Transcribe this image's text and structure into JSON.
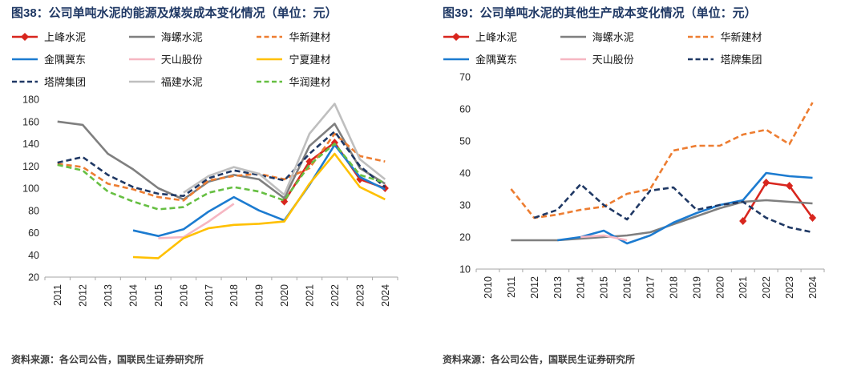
{
  "theme": {
    "title_color": "#1F3864",
    "axis_color": "#A6A6A6",
    "tick_color": "#262626",
    "source_color": "#404040"
  },
  "panels": [
    {
      "title": "图38：公司单吨水泥的能源及煤炭成本变化情况（单位：元）",
      "source": "资料来源：各公司公告，国联民生证券研究所",
      "chart_data": {
        "type": "line",
        "title": "公司单吨水泥的能源及煤炭成本变化情况",
        "unit": "元",
        "x": [
          "2011",
          "2012",
          "2013",
          "2014",
          "2015",
          "2016",
          "2017",
          "2018",
          "2019",
          "2020",
          "2021",
          "2022",
          "2023",
          "2024"
        ],
        "ylim": [
          20,
          180
        ],
        "yticks": [
          20,
          40,
          60,
          80,
          100,
          120,
          140,
          160,
          180
        ],
        "grid": false,
        "legend_position": "top",
        "series": [
          {
            "name": "上峰水泥",
            "color": "#D8261E",
            "dash": "solid",
            "marker": "diamond",
            "values": [
              null,
              null,
              null,
              null,
              null,
              null,
              null,
              null,
              null,
              88,
              124,
              141,
              108,
              100
            ]
          },
          {
            "name": "海螺水泥",
            "color": "#7F7F7F",
            "dash": "solid",
            "marker": "none",
            "values": [
              160,
              157,
              131,
              117,
              100,
              90,
              106,
              112,
              108,
              91,
              138,
              158,
              118,
              104
            ]
          },
          {
            "name": "华新建材",
            "color": "#ED7D31",
            "dash": "dashed",
            "marker": "none",
            "values": [
              122,
              119,
              104,
              99,
              92,
              89,
              107,
              111,
              113,
              108,
              118,
              149,
              129,
              124
            ]
          },
          {
            "name": "金隅冀东",
            "color": "#1C7BD0",
            "dash": "solid",
            "marker": "none",
            "values": [
              null,
              null,
              null,
              62,
              57,
              63,
              79,
              92,
              80,
              71,
              103,
              139,
              110,
              99
            ]
          },
          {
            "name": "天山股份",
            "color": "#F6B6C2",
            "dash": "solid",
            "marker": "none",
            "values": [
              null,
              null,
              null,
              null,
              55,
              56,
              70,
              86,
              null,
              null,
              null,
              null,
              null,
              null
            ]
          },
          {
            "name": "宁夏建材",
            "color": "#FFC000",
            "dash": "solid",
            "marker": "none",
            "values": [
              null,
              null,
              null,
              38,
              37,
              55,
              64,
              67,
              68,
              70,
              104,
              131,
              101,
              90
            ]
          },
          {
            "name": "塔牌集团",
            "color": "#1F3864",
            "dash": "dashed",
            "marker": "none",
            "values": [
              123,
              128,
              112,
              101,
              95,
              93,
              109,
              116,
              112,
              107,
              131,
              151,
              120,
              101
            ]
          },
          {
            "name": "福建水泥",
            "color": "#BFBFBF",
            "dash": "solid",
            "marker": "none",
            "values": [
              null,
              null,
              null,
              null,
              null,
              96,
              111,
              119,
              113,
              94,
              149,
              176,
              126,
              108
            ]
          },
          {
            "name": "华润建材",
            "color": "#66BF42",
            "dash": "dashed",
            "marker": "none",
            "values": [
              121,
              116,
              97,
              88,
              81,
              83,
              96,
              101,
              97,
              89,
              121,
              140,
              112,
              105
            ]
          }
        ]
      }
    },
    {
      "title": "图39：公司单吨水泥的其他生产成本变化情况（单位：元）",
      "source": "资料来源：各公司公告，国联民生证券研究所",
      "chart_data": {
        "type": "line",
        "title": "公司单吨水泥的其他生产成本变化情况",
        "unit": "元",
        "x": [
          "2010",
          "2011",
          "2012",
          "2013",
          "2014",
          "2015",
          "2016",
          "2017",
          "2018",
          "2019",
          "2020",
          "2021",
          "2022",
          "2023",
          "2024"
        ],
        "ylim": [
          10,
          70
        ],
        "yticks": [
          10,
          20,
          30,
          40,
          50,
          60,
          70
        ],
        "grid": false,
        "legend_position": "top",
        "series": [
          {
            "name": "上峰水泥",
            "color": "#D8261E",
            "dash": "solid",
            "marker": "diamond",
            "values": [
              null,
              null,
              null,
              null,
              null,
              null,
              null,
              null,
              null,
              null,
              null,
              25,
              37,
              36,
              26
            ]
          },
          {
            "name": "海螺水泥",
            "color": "#7F7F7F",
            "dash": "solid",
            "marker": "none",
            "values": [
              null,
              19,
              19,
              19,
              19.5,
              20,
              20.5,
              21.5,
              24,
              26.5,
              29,
              31,
              31.5,
              31,
              30.5
            ]
          },
          {
            "name": "华新建材",
            "color": "#ED7D31",
            "dash": "dashed",
            "marker": "none",
            "values": [
              null,
              35,
              26,
              27,
              28.5,
              29.5,
              33.5,
              35,
              47,
              48.5,
              48.5,
              52,
              53.5,
              49,
              62
            ]
          },
          {
            "name": "金隅冀东",
            "color": "#1C7BD0",
            "dash": "solid",
            "marker": "none",
            "values": [
              null,
              null,
              null,
              19,
              20,
              22,
              18,
              20.5,
              24.5,
              27.5,
              30,
              31.5,
              40,
              39,
              38.5
            ]
          },
          {
            "name": "天山股份",
            "color": "#F6B6C2",
            "dash": "solid",
            "marker": "none",
            "values": [
              null,
              null,
              null,
              null,
              20,
              20.5,
              19,
              null,
              null,
              null,
              null,
              null,
              null,
              null,
              null
            ]
          },
          {
            "name": "塔牌集团",
            "color": "#1F3864",
            "dash": "dashed",
            "marker": "none",
            "values": [
              null,
              null,
              26,
              28.5,
              36.5,
              30,
              25.5,
              34.5,
              35.5,
              28.5,
              30,
              31,
              26,
              23,
              21.5
            ]
          }
        ]
      }
    }
  ]
}
